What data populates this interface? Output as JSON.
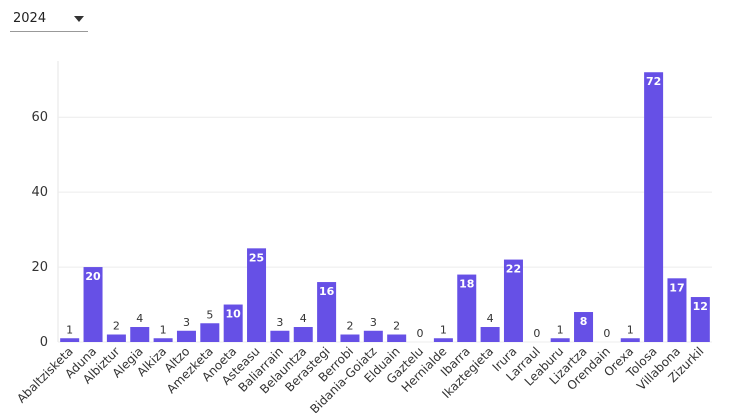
{
  "dropdown": {
    "selected": "2024"
  },
  "chart_data": {
    "type": "bar",
    "categories": [
      "Abaltzisketa",
      "Aduna",
      "Albiztur",
      "Alegia",
      "Alkiza",
      "Altzo",
      "Amezketa",
      "Anoeta",
      "Asteasu",
      "Baliarrain",
      "Belauntza",
      "Berastegi",
      "Berrobi",
      "Bidania-Goiatz",
      "Elduain",
      "Gaztelu",
      "Hernialde",
      "Ibarra",
      "Ikaztegieta",
      "Irura",
      "Larraul",
      "Leaburu",
      "Lizartza",
      "Orendain",
      "Orexa",
      "Tolosa",
      "Villabona",
      "Zizurkil"
    ],
    "values": [
      1,
      20,
      2,
      4,
      1,
      3,
      5,
      10,
      25,
      3,
      4,
      16,
      2,
      3,
      2,
      0,
      1,
      18,
      4,
      22,
      0,
      1,
      8,
      0,
      1,
      72,
      17,
      12
    ],
    "color": "#6650e6",
    "ylim": [
      0,
      75
    ],
    "yticks": [
      0,
      20,
      40,
      60
    ],
    "grid": true
  }
}
